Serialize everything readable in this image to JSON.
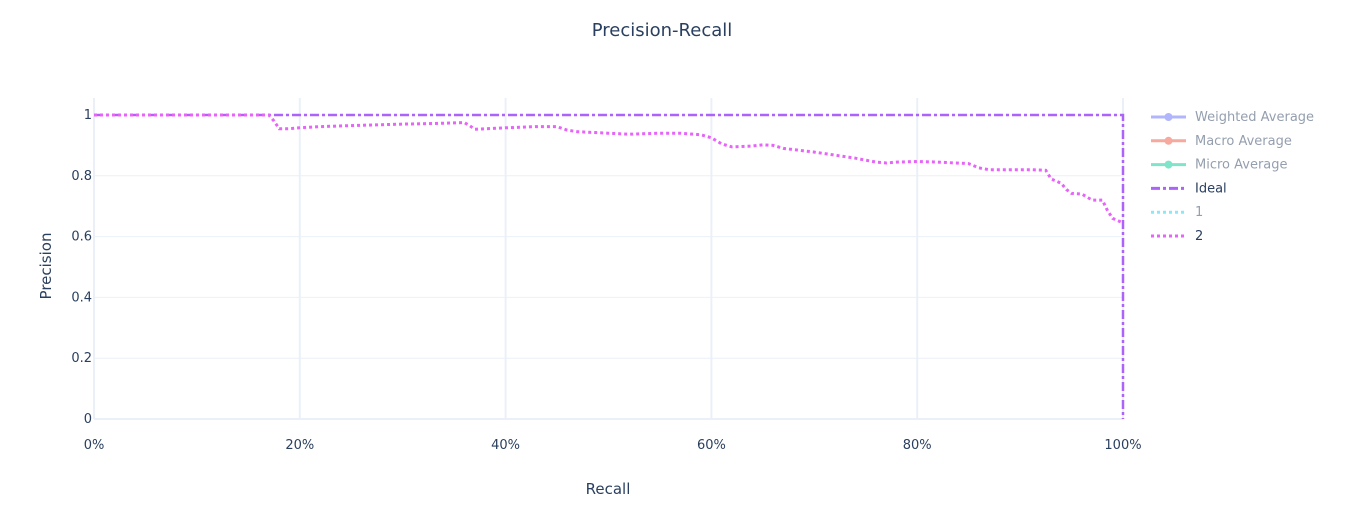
{
  "chart_data": {
    "type": "line",
    "title": "Precision-Recall",
    "xlabel": "Recall",
    "ylabel": "Precision",
    "xlim": [
      0,
      1
    ],
    "ylim": [
      0,
      1
    ],
    "x_ticks": [
      0,
      0.2,
      0.4,
      0.6,
      0.8,
      1.0
    ],
    "x_tick_labels": [
      "0%",
      "20%",
      "40%",
      "60%",
      "80%",
      "100%"
    ],
    "y_ticks": [
      0,
      0.2,
      0.4,
      0.6,
      0.8,
      1
    ],
    "y_tick_labels": [
      "0",
      "0.2",
      "0.4",
      "0.6",
      "0.8",
      "1"
    ],
    "grid": true,
    "legend_position": "right",
    "legend": [
      {
        "name": "Weighted Average",
        "color": "#636efa",
        "dash": "solid",
        "marker": true,
        "visible": false
      },
      {
        "name": "Macro Average",
        "color": "#ef553b",
        "dash": "solid",
        "marker": true,
        "visible": false
      },
      {
        "name": "Micro Average",
        "color": "#00cc96",
        "dash": "solid",
        "marker": true,
        "visible": false
      },
      {
        "name": "Ideal",
        "color": "#ab63fa",
        "dash": "dashdot",
        "marker": false,
        "visible": true
      },
      {
        "name": "1",
        "color": "#19d3f3",
        "dash": "dot",
        "marker": false,
        "visible": false
      },
      {
        "name": "2",
        "color": "#e763fa",
        "dash": "dot",
        "marker": false,
        "visible": true
      }
    ],
    "series": [
      {
        "name": "Ideal",
        "color": "#ab63fa",
        "dash": "dashdot",
        "x": [
          0,
          1,
          1
        ],
        "y": [
          1,
          1,
          0
        ]
      },
      {
        "name": "2",
        "color": "#e763fa",
        "dash": "dot",
        "x": [
          0,
          0.17,
          0.175,
          0.18,
          0.19,
          0.2,
          0.22,
          0.25,
          0.28,
          0.3,
          0.33,
          0.36,
          0.365,
          0.37,
          0.4,
          0.43,
          0.45,
          0.46,
          0.47,
          0.5,
          0.52,
          0.55,
          0.57,
          0.59,
          0.6,
          0.61,
          0.62,
          0.64,
          0.65,
          0.66,
          0.67,
          0.7,
          0.72,
          0.74,
          0.76,
          0.77,
          0.78,
          0.8,
          0.82,
          0.85,
          0.86,
          0.87,
          0.89,
          0.91,
          0.925,
          0.93,
          0.94,
          0.945,
          0.95,
          0.96,
          0.965,
          0.97,
          0.98,
          0.985,
          0.99,
          1.0
        ],
        "y": [
          1,
          1,
          0.98,
          0.955,
          0.955,
          0.958,
          0.962,
          0.965,
          0.968,
          0.97,
          0.972,
          0.975,
          0.965,
          0.953,
          0.958,
          0.962,
          0.962,
          0.95,
          0.945,
          0.94,
          0.937,
          0.94,
          0.94,
          0.935,
          0.925,
          0.905,
          0.895,
          0.898,
          0.902,
          0.9,
          0.89,
          0.878,
          0.868,
          0.858,
          0.845,
          0.842,
          0.845,
          0.847,
          0.845,
          0.84,
          0.826,
          0.82,
          0.82,
          0.82,
          0.818,
          0.79,
          0.775,
          0.755,
          0.742,
          0.74,
          0.73,
          0.72,
          0.72,
          0.685,
          0.66,
          0.645
        ]
      }
    ]
  }
}
